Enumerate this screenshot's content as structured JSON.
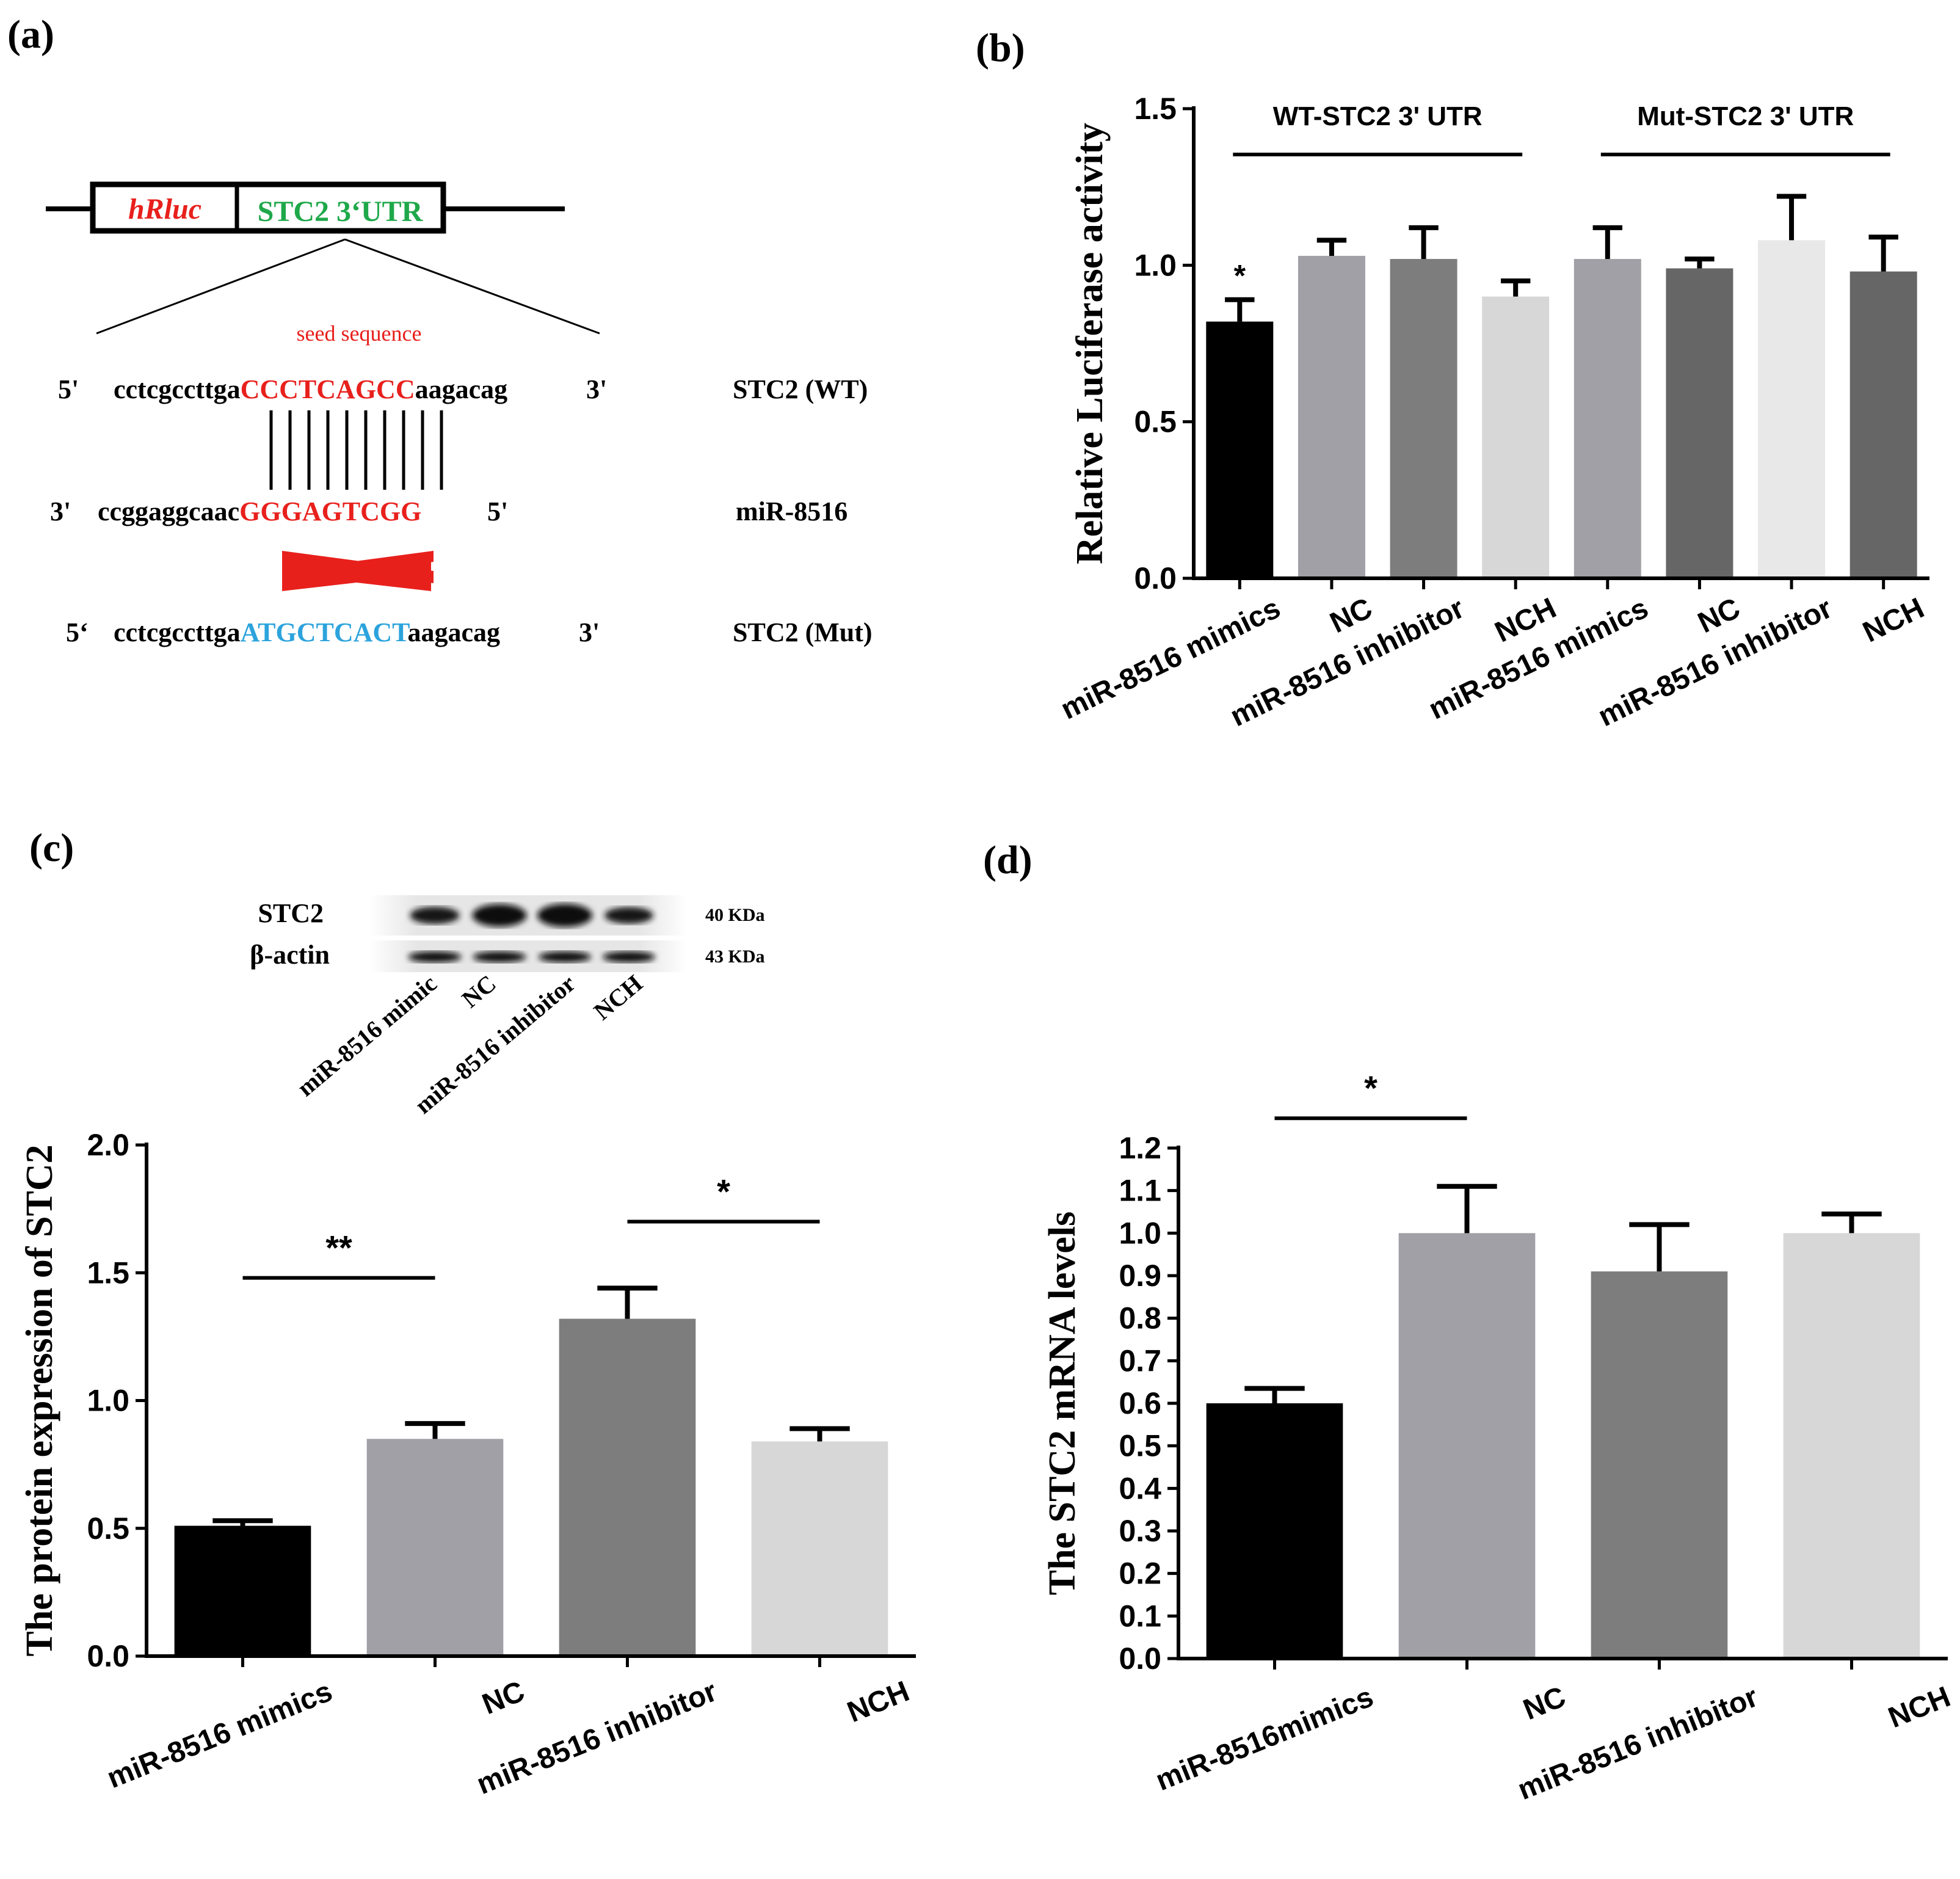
{
  "panel_labels": {
    "a": "(a)",
    "b": "(b)",
    "c": "(c)",
    "d": "(d)"
  },
  "panel_a": {
    "construct_left": "hRluc",
    "construct_right": "STC2 3‘UTR",
    "seed_label": "seed sequence",
    "rows": [
      {
        "five": "5'",
        "left": "cctcgccttga",
        "mid": "CCCTCAGCC",
        "right": "aagacag",
        "three": "3'",
        "name": "STC2 (WT)",
        "mid_color": "#e8201c"
      },
      {
        "five": "3'",
        "left": "ccggaggcaac",
        "mid": "GGGAGTCGG",
        "right": "",
        "three": "5'",
        "name": "miR-8516",
        "mid_color": "#e8201c"
      },
      {
        "five": "5‘",
        "left": "cctcgccttga",
        "mid": "ATGCTCACT",
        "right": "aagacag",
        "three": "3'",
        "name": "STC2 (Mut)",
        "mid_color": "#2ca3dc"
      }
    ],
    "colors": {
      "red": "#e8201c",
      "green": "#1fa84a",
      "blue": "#2ca3dc"
    }
  },
  "western_blot": {
    "bands": [
      {
        "name": "STC2",
        "size": "40 KDa",
        "intensity": [
          0.55,
          0.95,
          1.0,
          0.5
        ]
      },
      {
        "name": "β-actin",
        "size": "43 KDa",
        "intensity": [
          0.85,
          0.85,
          0.8,
          0.8
        ]
      }
    ],
    "lanes": [
      "miR-8516 mimic",
      "NC",
      "miR-8516 inhibitor",
      "NCH"
    ]
  },
  "chart_data": [
    {
      "id": "b",
      "type": "bar",
      "ylabel": "Relative Luciferase activity",
      "xlabel": "",
      "ylim": [
        0,
        1.5
      ],
      "yticks": [
        "0.0",
        "0.5",
        "1.0",
        "1.5"
      ],
      "categories": [
        "miR-8516 mimics",
        "NC",
        "miR-8516 inhibitor",
        "NCH",
        "miR-8516 mimics",
        "NC",
        "miR-8516 inhibitor",
        "NCH"
      ],
      "values": [
        0.82,
        1.03,
        1.02,
        0.9,
        1.02,
        0.99,
        1.08,
        0.98
      ],
      "errors": [
        0.07,
        0.05,
        0.1,
        0.05,
        0.1,
        0.03,
        0.14,
        0.11
      ],
      "colors": [
        "#000000",
        "#a1a0a6",
        "#7d7d7d",
        "#d7d7d7",
        "#a1a0a6",
        "#666666",
        "#e8e8e8",
        "#666666"
      ],
      "groups": [
        {
          "label": "WT-STC2  3' UTR",
          "from": 0,
          "to": 3
        },
        {
          "label": "Mut-STC2  3' UTR",
          "from": 4,
          "to": 7
        }
      ],
      "stars": [
        {
          "bar": 0,
          "text": "*"
        }
      ]
    },
    {
      "id": "c",
      "type": "bar",
      "ylabel": "The protein expression of STC2",
      "xlabel": "",
      "ylim": [
        0,
        2.0
      ],
      "yticks": [
        "0.0",
        "0.5",
        "1.0",
        "1.5",
        "2.0"
      ],
      "categories": [
        "miR-8516 mimics",
        "NC",
        "miR-8516 inhibitor",
        "NCH"
      ],
      "values": [
        0.51,
        0.85,
        1.32,
        0.84
      ],
      "errors": [
        0.02,
        0.06,
        0.12,
        0.05
      ],
      "colors": [
        "#000000",
        "#a1a0a6",
        "#7d7d7d",
        "#d7d7d7"
      ],
      "brackets": [
        {
          "from": 0,
          "to": 1,
          "y": 1.48,
          "text": "**"
        },
        {
          "from": 2,
          "to": 3,
          "y": 1.7,
          "text": "*"
        }
      ]
    },
    {
      "id": "d",
      "type": "bar",
      "ylabel": "The STC2 mRNA levels",
      "xlabel": "",
      "ylim": [
        0,
        1.2
      ],
      "yticks": [
        "0.0",
        "0.1",
        "0.2",
        "0.3",
        "0.4",
        "0.5",
        "0.6",
        "0.7",
        "0.8",
        "0.9",
        "1.0",
        "1.1",
        "1.2"
      ],
      "categories": [
        "miR-8516mimics",
        "NC",
        "miR-8516 inhibitor",
        "NCH"
      ],
      "values": [
        0.6,
        1.0,
        0.91,
        1.0
      ],
      "errors": [
        0.035,
        0.11,
        0.11,
        0.045
      ],
      "colors": [
        "#000000",
        "#a1a0a6",
        "#7d7d7d",
        "#d7d7d7"
      ],
      "brackets": [
        {
          "from": 0,
          "to": 1,
          "y": 1.27,
          "text": "*"
        }
      ]
    }
  ]
}
